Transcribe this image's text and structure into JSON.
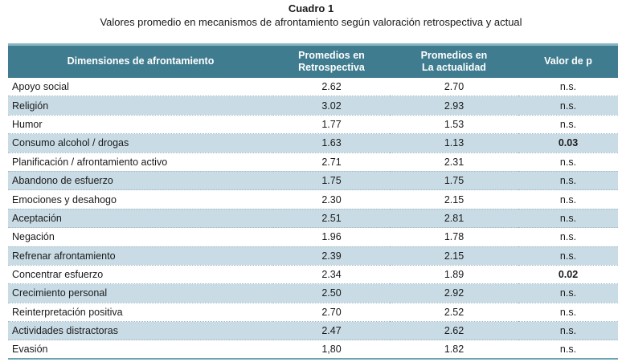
{
  "caption": {
    "title": "Cuadro 1",
    "subtitle": "Valores promedio en mecanismos de afrontamiento según valoración retrospectiva y actual"
  },
  "table": {
    "headers": {
      "dimension": "Dimensiones de afrontamiento",
      "retro_line1": "Promedios en",
      "retro_line2": "Retrospectiva",
      "current_line1": "Promedios en",
      "current_line2": "La actualidad",
      "pvalue": "Valor de p"
    },
    "rows": [
      {
        "dimension": "Apoyo social",
        "retro": "2.62",
        "current": "2.70",
        "p": "n.s."
      },
      {
        "dimension": "Religión",
        "retro": "3.02",
        "current": "2.93",
        "p": "n.s."
      },
      {
        "dimension": "Humor",
        "retro": "1.77",
        "current": "1.53",
        "p": "n.s."
      },
      {
        "dimension": "Consumo alcohol / drogas",
        "retro": "1.63",
        "current": "1.13",
        "p": "0.03"
      },
      {
        "dimension": "Planificación / afrontamiento activo",
        "retro": "2.71",
        "current": "2.31",
        "p": "n.s."
      },
      {
        "dimension": "Abandono de esfuerzo",
        "retro": "1.75",
        "current": "1.75",
        "p": "n.s."
      },
      {
        "dimension": "Emociones y desahogo",
        "retro": "2.30",
        "current": "2.15",
        "p": "n.s."
      },
      {
        "dimension": "Aceptación",
        "retro": "2.51",
        "current": "2.81",
        "p": "n.s."
      },
      {
        "dimension": "Negación",
        "retro": "1.96",
        "current": "1.78",
        "p": "n.s."
      },
      {
        "dimension": "Refrenar afrontamiento",
        "retro": "2.39",
        "current": "2.15",
        "p": "n.s."
      },
      {
        "dimension": "Concentrar esfuerzo",
        "retro": "2.34",
        "current": "1.89",
        "p": "0.02"
      },
      {
        "dimension": "Crecimiento personal",
        "retro": "2.50",
        "current": "2.92",
        "p": "n.s."
      },
      {
        "dimension": "Reinterpretación positiva",
        "retro": "2.70",
        "current": "2.52",
        "p": "n.s."
      },
      {
        "dimension": "Actividades distractoras",
        "retro": "2.47",
        "current": "2.62",
        "p": "n.s."
      },
      {
        "dimension": "Evasión",
        "retro": "1,80",
        "current": "1.82",
        "p": "n.s."
      }
    ]
  },
  "colors": {
    "header_background": "#3f7c8f",
    "header_text": "#ffffff",
    "shaded_row": "#c9dce5",
    "rule_accent": "#6aa3b3"
  }
}
